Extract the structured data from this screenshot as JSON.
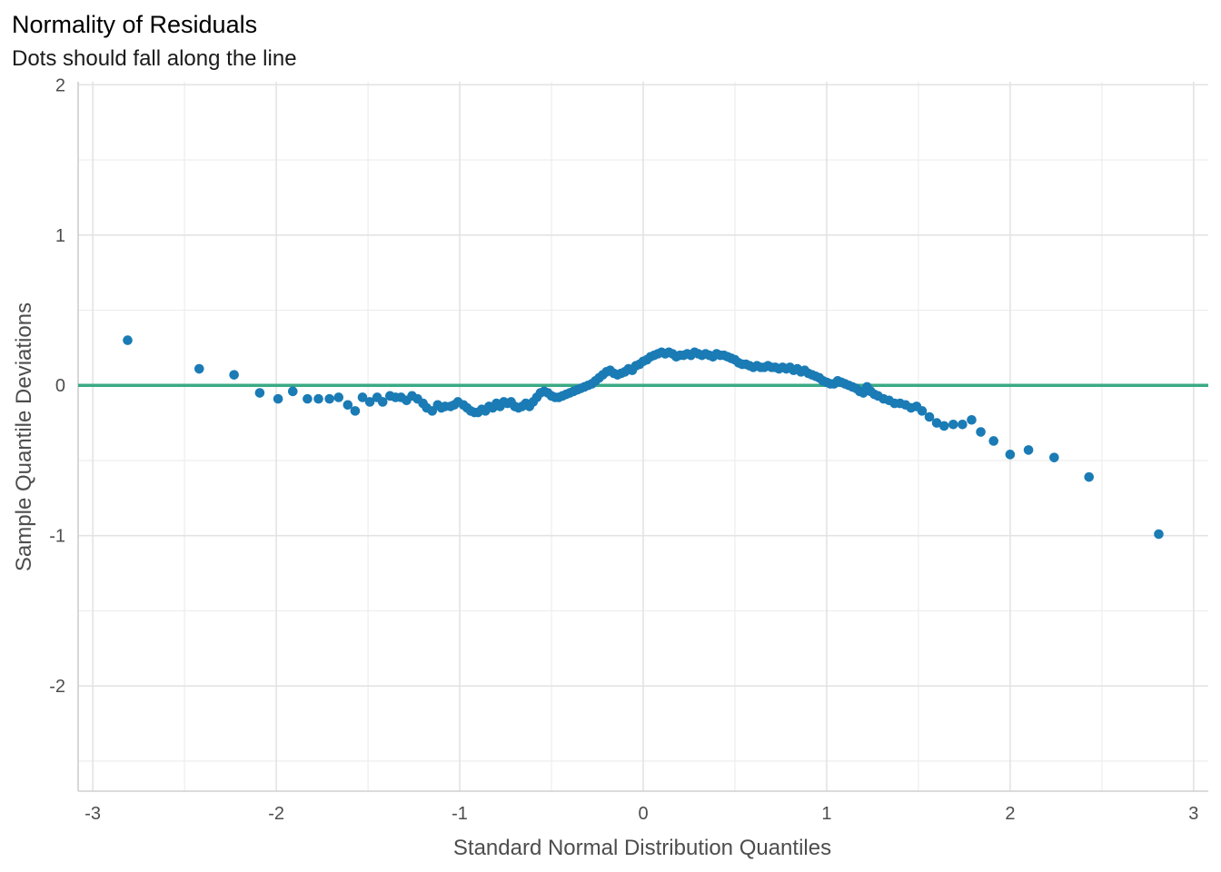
{
  "chart_data": {
    "type": "scatter",
    "title": "Normality of Residuals",
    "subtitle": "Dots should fall along the line",
    "xlabel": "Standard Normal Distribution Quantiles",
    "ylabel": "Sample Quantile Deviations",
    "xlim": [
      -3.08,
      3.08
    ],
    "ylim": [
      -2.7,
      2.02
    ],
    "x_ticks": [
      "-3",
      "-2",
      "-1",
      "0",
      "1",
      "2",
      "3"
    ],
    "y_ticks": [
      "-2",
      "-1",
      "0",
      "1",
      "2"
    ],
    "grid": true,
    "reference_line": {
      "y": 0,
      "color": "#3aaa85"
    },
    "point_color": "#1a7bb5",
    "points": [
      [
        -2.81,
        0.3
      ],
      [
        -2.42,
        0.11
      ],
      [
        -2.23,
        0.07
      ],
      [
        -2.09,
        -0.05
      ],
      [
        -1.99,
        -0.09
      ],
      [
        -1.91,
        -0.04
      ],
      [
        -1.83,
        -0.09
      ],
      [
        -1.77,
        -0.09
      ],
      [
        -1.71,
        -0.09
      ],
      [
        -1.66,
        -0.08
      ],
      [
        -1.61,
        -0.13
      ],
      [
        -1.57,
        -0.17
      ],
      [
        -1.53,
        -0.08
      ],
      [
        -1.49,
        -0.11
      ],
      [
        -1.45,
        -0.08
      ],
      [
        -1.42,
        -0.11
      ],
      [
        -1.38,
        -0.07
      ],
      [
        -1.35,
        -0.08
      ],
      [
        -1.32,
        -0.08
      ],
      [
        -1.29,
        -0.1
      ],
      [
        -1.26,
        -0.07
      ],
      [
        -1.23,
        -0.09
      ],
      [
        -1.2,
        -0.12
      ],
      [
        -1.18,
        -0.15
      ],
      [
        -1.15,
        -0.17
      ],
      [
        -1.12,
        -0.13
      ],
      [
        -1.1,
        -0.15
      ],
      [
        -1.08,
        -0.14
      ],
      [
        -1.05,
        -0.14
      ],
      [
        -1.03,
        -0.13
      ],
      [
        -1.01,
        -0.11
      ],
      [
        -0.98,
        -0.13
      ],
      [
        -0.96,
        -0.15
      ],
      [
        -0.94,
        -0.17
      ],
      [
        -0.92,
        -0.18
      ],
      [
        -0.9,
        -0.18
      ],
      [
        -0.88,
        -0.16
      ],
      [
        -0.86,
        -0.17
      ],
      [
        -0.84,
        -0.14
      ],
      [
        -0.82,
        -0.15
      ],
      [
        -0.8,
        -0.12
      ],
      [
        -0.78,
        -0.14
      ],
      [
        -0.76,
        -0.11
      ],
      [
        -0.74,
        -0.12
      ],
      [
        -0.72,
        -0.11
      ],
      [
        -0.7,
        -0.14
      ],
      [
        -0.68,
        -0.15
      ],
      [
        -0.66,
        -0.14
      ],
      [
        -0.64,
        -0.12
      ],
      [
        -0.62,
        -0.14
      ],
      [
        -0.6,
        -0.11
      ],
      [
        -0.58,
        -0.08
      ],
      [
        -0.56,
        -0.05
      ],
      [
        -0.54,
        -0.04
      ],
      [
        -0.52,
        -0.05
      ],
      [
        -0.5,
        -0.07
      ],
      [
        -0.48,
        -0.08
      ],
      [
        -0.46,
        -0.08
      ],
      [
        -0.44,
        -0.07
      ],
      [
        -0.42,
        -0.06
      ],
      [
        -0.4,
        -0.05
      ],
      [
        -0.38,
        -0.04
      ],
      [
        -0.36,
        -0.03
      ],
      [
        -0.34,
        -0.02
      ],
      [
        -0.32,
        -0.01
      ],
      [
        -0.3,
        0.0
      ],
      [
        -0.28,
        0.01
      ],
      [
        -0.26,
        0.03
      ],
      [
        -0.24,
        0.05
      ],
      [
        -0.22,
        0.07
      ],
      [
        -0.2,
        0.09
      ],
      [
        -0.18,
        0.1
      ],
      [
        -0.16,
        0.08
      ],
      [
        -0.14,
        0.07
      ],
      [
        -0.12,
        0.08
      ],
      [
        -0.1,
        0.09
      ],
      [
        -0.08,
        0.11
      ],
      [
        -0.06,
        0.1
      ],
      [
        -0.04,
        0.13
      ],
      [
        -0.02,
        0.14
      ],
      [
        0.0,
        0.16
      ],
      [
        0.02,
        0.17
      ],
      [
        0.04,
        0.19
      ],
      [
        0.06,
        0.2
      ],
      [
        0.08,
        0.21
      ],
      [
        0.1,
        0.22
      ],
      [
        0.12,
        0.21
      ],
      [
        0.14,
        0.22
      ],
      [
        0.16,
        0.21
      ],
      [
        0.18,
        0.19
      ],
      [
        0.2,
        0.2
      ],
      [
        0.22,
        0.2
      ],
      [
        0.24,
        0.21
      ],
      [
        0.26,
        0.2
      ],
      [
        0.28,
        0.22
      ],
      [
        0.3,
        0.21
      ],
      [
        0.32,
        0.2
      ],
      [
        0.34,
        0.21
      ],
      [
        0.36,
        0.2
      ],
      [
        0.38,
        0.19
      ],
      [
        0.4,
        0.21
      ],
      [
        0.42,
        0.2
      ],
      [
        0.44,
        0.2
      ],
      [
        0.46,
        0.19
      ],
      [
        0.48,
        0.18
      ],
      [
        0.5,
        0.17
      ],
      [
        0.52,
        0.15
      ],
      [
        0.54,
        0.14
      ],
      [
        0.56,
        0.14
      ],
      [
        0.58,
        0.13
      ],
      [
        0.6,
        0.12
      ],
      [
        0.62,
        0.13
      ],
      [
        0.64,
        0.12
      ],
      [
        0.66,
        0.12
      ],
      [
        0.68,
        0.13
      ],
      [
        0.7,
        0.12
      ],
      [
        0.72,
        0.12
      ],
      [
        0.74,
        0.11
      ],
      [
        0.76,
        0.12
      ],
      [
        0.78,
        0.11
      ],
      [
        0.8,
        0.12
      ],
      [
        0.82,
        0.1
      ],
      [
        0.84,
        0.11
      ],
      [
        0.86,
        0.09
      ],
      [
        0.88,
        0.1
      ],
      [
        0.9,
        0.08
      ],
      [
        0.92,
        0.07
      ],
      [
        0.94,
        0.06
      ],
      [
        0.96,
        0.05
      ],
      [
        0.98,
        0.03
      ],
      [
        1.0,
        0.02
      ],
      [
        1.02,
        0.01
      ],
      [
        1.04,
        0.01
      ],
      [
        1.06,
        0.03
      ],
      [
        1.08,
        0.02
      ],
      [
        1.1,
        0.01
      ],
      [
        1.12,
        0.0
      ],
      [
        1.14,
        -0.01
      ],
      [
        1.16,
        -0.02
      ],
      [
        1.18,
        -0.04
      ],
      [
        1.2,
        -0.05
      ],
      [
        1.22,
        -0.01
      ],
      [
        1.24,
        -0.04
      ],
      [
        1.26,
        -0.06
      ],
      [
        1.28,
        -0.07
      ],
      [
        1.31,
        -0.09
      ],
      [
        1.34,
        -0.1
      ],
      [
        1.37,
        -0.12
      ],
      [
        1.4,
        -0.12
      ],
      [
        1.43,
        -0.13
      ],
      [
        1.46,
        -0.15
      ],
      [
        1.49,
        -0.14
      ],
      [
        1.52,
        -0.17
      ],
      [
        1.56,
        -0.21
      ],
      [
        1.6,
        -0.25
      ],
      [
        1.64,
        -0.27
      ],
      [
        1.69,
        -0.26
      ],
      [
        1.74,
        -0.26
      ],
      [
        1.79,
        -0.23
      ],
      [
        1.84,
        -0.31
      ],
      [
        1.91,
        -0.37
      ],
      [
        2.0,
        -0.46
      ],
      [
        2.1,
        -0.43
      ],
      [
        2.24,
        -0.48
      ],
      [
        2.43,
        -0.61
      ],
      [
        2.81,
        -0.99
      ]
    ]
  }
}
